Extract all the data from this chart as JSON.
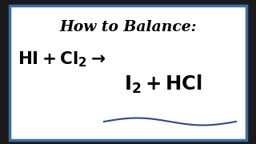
{
  "title": "How to Balance:",
  "bg_color": "#ffffff",
  "border_color": "#3a6ea5",
  "text_color": "#000000",
  "title_fontsize": 13.5,
  "eq_fontsize": 14.5,
  "wavy_color": "#2a4a8a",
  "outer_bg": "#1a1a1a",
  "border_linewidth": 2.5
}
